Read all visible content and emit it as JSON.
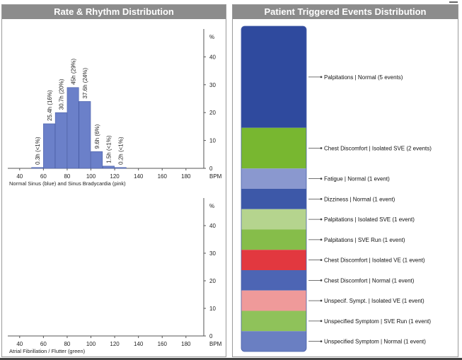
{
  "chart_data": [
    {
      "type": "bar",
      "title": "Rate & Rhythm Distribution",
      "xlabel": "Normal Sinus (blue) and Sinus Bradycardia (pink)",
      "y_unit": "%",
      "x_unit": "BPM",
      "x_ticks": [
        40,
        60,
        80,
        100,
        120,
        140,
        160,
        180
      ],
      "y_ticks": [
        0,
        10,
        20,
        30,
        40
      ],
      "xlim": [
        30,
        195
      ],
      "ylim": [
        0,
        50
      ],
      "bar_width_bpm": 10,
      "grid": false,
      "color": "#6b80c9",
      "bars": [
        {
          "x": 55,
          "value": 0.3,
          "label": "0.3h (<1%)"
        },
        {
          "x": 65,
          "value": 16,
          "label": "25.4h (16%)"
        },
        {
          "x": 75,
          "value": 20,
          "label": "30.7h (20%)"
        },
        {
          "x": 85,
          "value": 29,
          "label": "45h (29%)"
        },
        {
          "x": 95,
          "value": 24,
          "label": "37.6h (24%)"
        },
        {
          "x": 105,
          "value": 6,
          "label": "9.6h (6%)"
        },
        {
          "x": 115,
          "value": 0.8,
          "label": "1.5h (<1%)"
        },
        {
          "x": 125,
          "value": 0.3,
          "label": "0.2h (<1%)"
        }
      ]
    },
    {
      "type": "bar",
      "title": "",
      "xlabel": "Atrial Fibrillation / Flutter (green)",
      "y_unit": "%",
      "x_unit": "BPM",
      "x_ticks": [
        40,
        60,
        80,
        100,
        120,
        140,
        160,
        180
      ],
      "y_ticks": [
        0,
        10,
        20,
        30,
        40
      ],
      "xlim": [
        30,
        195
      ],
      "ylim": [
        0,
        50
      ],
      "grid": false,
      "color": "#7fb244",
      "bars": []
    },
    {
      "type": "bar",
      "subtype": "stacked-100",
      "title": "Patient Triggered Events Distribution",
      "segments": [
        {
          "label": "Palpitations | Normal (5 events)",
          "value": 5,
          "color": "#2f4a9e"
        },
        {
          "label": "Chest Discomfort | Isolated SVE (2 events)",
          "value": 2,
          "color": "#78b730"
        },
        {
          "label": "Fatigue | Normal (1 event)",
          "value": 1,
          "color": "#8a98cf"
        },
        {
          "label": "Dizziness | Normal (1 event)",
          "value": 1,
          "color": "#3d58a8"
        },
        {
          "label": "Palpitations | Isolated SVE (1 event)",
          "value": 1,
          "color": "#b5d48e"
        },
        {
          "label": "Palpitations | SVE Run (1 event)",
          "value": 1,
          "color": "#86bd4a"
        },
        {
          "label": "Chest Discomfort | Isolated VE (1 event)",
          "value": 1,
          "color": "#e2383f"
        },
        {
          "label": "Chest Discomfort | Normal (1 event)",
          "value": 1,
          "color": "#4d65b4"
        },
        {
          "label": "Unspecif. Sympt. | Isolated VE (1 event)",
          "value": 1,
          "color": "#ef9a9a"
        },
        {
          "label": "Unspecified Symptom | SVE Run (1 event)",
          "value": 1,
          "color": "#8fc25a"
        },
        {
          "label": "Unspecified Symptom | Normal (1 event)",
          "value": 1,
          "color": "#6a7fc2"
        }
      ]
    }
  ]
}
